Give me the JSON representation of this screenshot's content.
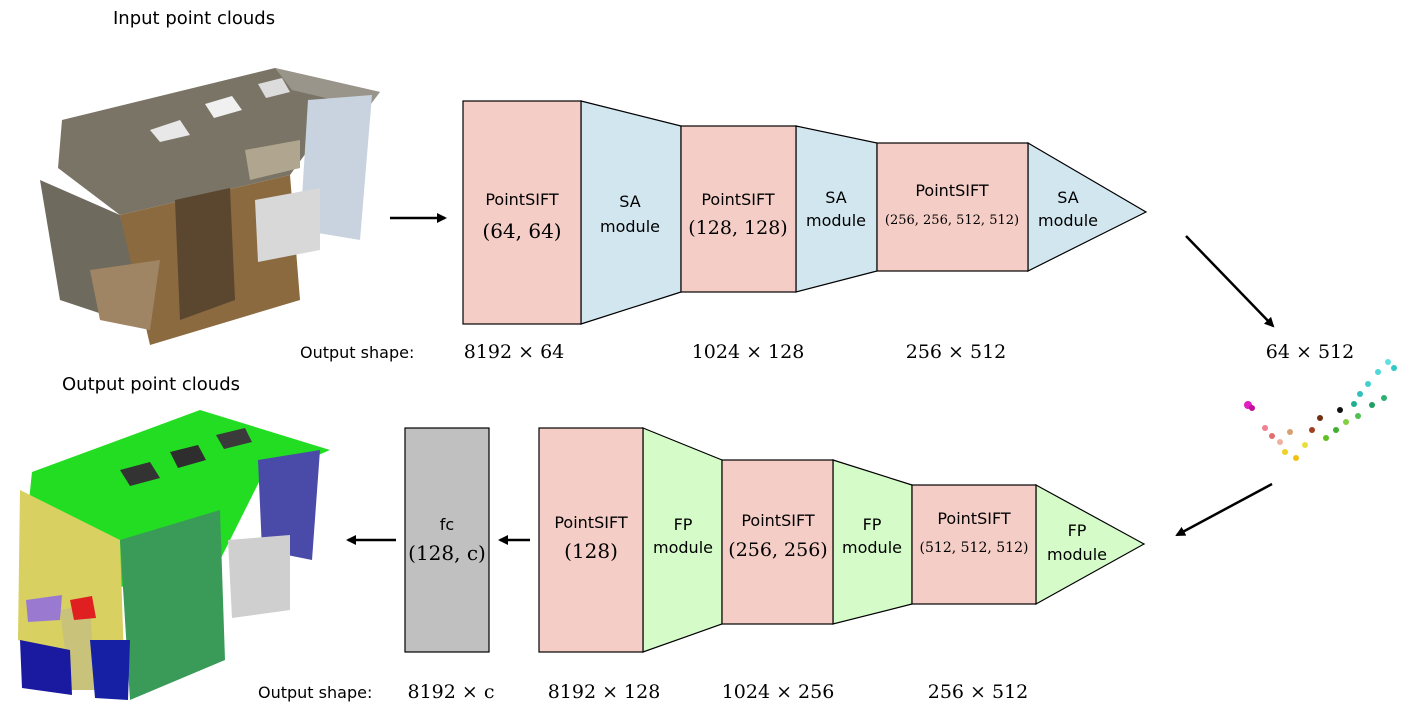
{
  "titles": {
    "input": "Input point clouds",
    "output": "Output point clouds"
  },
  "encoder": {
    "output_shape_label": "Output shape:",
    "pointsift_1": {
      "name": "PointSIFT",
      "params": "(64, 64)"
    },
    "sa_1": {
      "line1": "SA",
      "line2": "module"
    },
    "pointsift_2": {
      "name": "PointSIFT",
      "params": "(128, 128)"
    },
    "sa_2": {
      "line1": "SA",
      "line2": "module"
    },
    "pointsift_3": {
      "name": "PointSIFT",
      "params": "(256, 256, 512, 512)"
    },
    "sa_3": {
      "line1": "SA",
      "line2": "module"
    },
    "shapes": [
      "8192 × 64",
      "1024 × 128",
      "256 × 512"
    ]
  },
  "bottleneck_shape": "64 × 512",
  "decoder": {
    "output_shape_label": "Output shape:",
    "fc": {
      "name": "fc",
      "params": "(128, c)"
    },
    "pointsift_1": {
      "name": "PointSIFT",
      "params": "(128)"
    },
    "fp_1": {
      "line1": "FP",
      "line2": "module"
    },
    "pointsift_2": {
      "name": "PointSIFT",
      "params": "(256, 256)"
    },
    "fp_2": {
      "line1": "FP",
      "line2": "module"
    },
    "pointsift_3": {
      "name": "PointSIFT",
      "params": "(512, 512, 512)"
    },
    "fp_3": {
      "line1": "FP",
      "line2": "module"
    },
    "shapes": [
      "8192 × c",
      "8192 × 128",
      "1024 × 256",
      "256 × 512"
    ]
  },
  "colors": {
    "pointsift": "#f4cdc6",
    "sa": "#d1e6ef",
    "fp": "#d4fbc8",
    "fc": "#c0c0c0"
  }
}
